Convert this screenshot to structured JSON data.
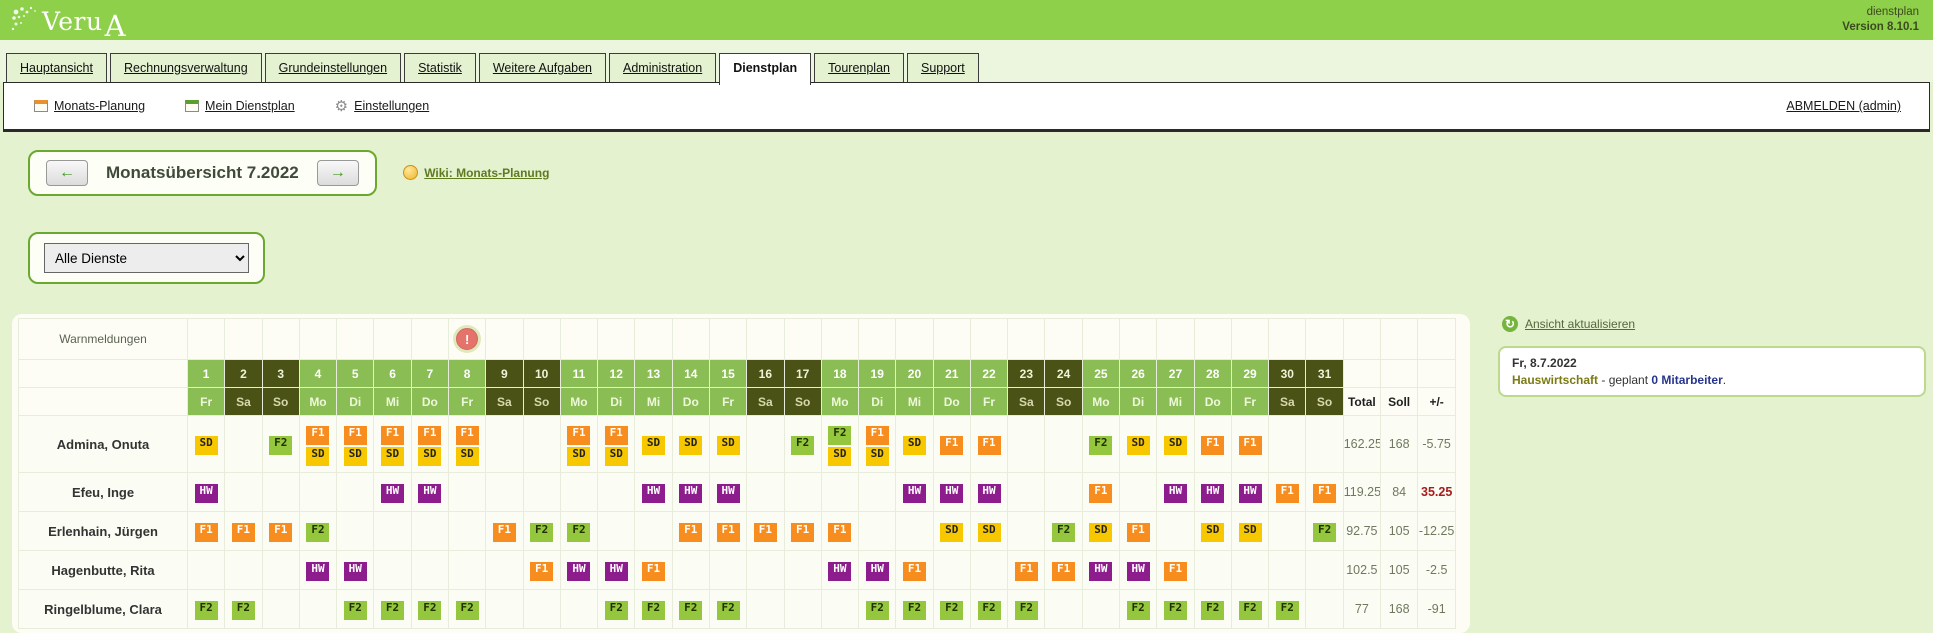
{
  "header": {
    "logo_word": "Veru",
    "logo_cap": "A",
    "app_name": "dienstplan",
    "version": "Version 8.10.1"
  },
  "tabs": [
    {
      "id": "hauptansicht",
      "label": "Hauptansicht",
      "active": false
    },
    {
      "id": "rechnungsverwaltung",
      "label": "Rechnungsverwaltung",
      "active": false
    },
    {
      "id": "grundeinstellungen",
      "label": "Grundeinstellungen",
      "active": false
    },
    {
      "id": "statistik",
      "label": "Statistik",
      "active": false
    },
    {
      "id": "weitere-aufgaben",
      "label": "Weitere Aufgaben",
      "active": false
    },
    {
      "id": "administration",
      "label": "Administration",
      "active": false
    },
    {
      "id": "dienstplan",
      "label": "Dienstplan",
      "active": true
    },
    {
      "id": "tourenplan",
      "label": "Tourenplan",
      "active": false
    },
    {
      "id": "support",
      "label": "Support",
      "active": false
    }
  ],
  "toolbar": {
    "items": [
      {
        "id": "monats-planung",
        "icon": "calendar-orange-icon",
        "label": "Monats-Planung"
      },
      {
        "id": "mein-dienstplan",
        "icon": "calendar-green-icon",
        "label": "Mein Dienstplan"
      },
      {
        "id": "einstellungen",
        "icon": "gear-icon",
        "label": "Einstellungen"
      }
    ],
    "logout_label": "ABMELDEN (admin)"
  },
  "month_nav": {
    "title": "Monatsübersicht 7.2022",
    "wiki_label": "Wiki: Monats-Planung"
  },
  "filter": {
    "selected": "Alle Dienste"
  },
  "right_panel": {
    "refresh_label": "Ansicht aktualisieren",
    "info_date": "Fr, 8.7.2022",
    "info_dept": "Hauswirtschaft",
    "info_middle": " - geplant ",
    "info_count": "0 Mitarbeiter",
    "info_end": "."
  },
  "roster": {
    "warn_label": "Warnmeldungen",
    "warning_day": 8,
    "totals_headers": [
      "Total",
      "Soll",
      "+/-"
    ],
    "days": [
      {
        "n": "1",
        "w": "Fr",
        "we": false
      },
      {
        "n": "2",
        "w": "Sa",
        "we": true
      },
      {
        "n": "3",
        "w": "So",
        "we": true
      },
      {
        "n": "4",
        "w": "Mo",
        "we": false
      },
      {
        "n": "5",
        "w": "Di",
        "we": false
      },
      {
        "n": "6",
        "w": "Mi",
        "we": false
      },
      {
        "n": "7",
        "w": "Do",
        "we": false
      },
      {
        "n": "8",
        "w": "Fr",
        "we": false
      },
      {
        "n": "9",
        "w": "Sa",
        "we": true
      },
      {
        "n": "10",
        "w": "So",
        "we": true
      },
      {
        "n": "11",
        "w": "Mo",
        "we": false
      },
      {
        "n": "12",
        "w": "Di",
        "we": false
      },
      {
        "n": "13",
        "w": "Mi",
        "we": false
      },
      {
        "n": "14",
        "w": "Do",
        "we": false
      },
      {
        "n": "15",
        "w": "Fr",
        "we": false
      },
      {
        "n": "16",
        "w": "Sa",
        "we": true
      },
      {
        "n": "17",
        "w": "So",
        "we": true
      },
      {
        "n": "18",
        "w": "Mo",
        "we": false
      },
      {
        "n": "19",
        "w": "Di",
        "we": false
      },
      {
        "n": "20",
        "w": "Mi",
        "we": false
      },
      {
        "n": "21",
        "w": "Do",
        "we": false
      },
      {
        "n": "22",
        "w": "Fr",
        "we": false
      },
      {
        "n": "23",
        "w": "Sa",
        "we": true
      },
      {
        "n": "24",
        "w": "So",
        "we": true
      },
      {
        "n": "25",
        "w": "Mo",
        "we": false
      },
      {
        "n": "26",
        "w": "Di",
        "we": false
      },
      {
        "n": "27",
        "w": "Mi",
        "we": false
      },
      {
        "n": "28",
        "w": "Do",
        "we": false
      },
      {
        "n": "29",
        "w": "Fr",
        "we": false
      },
      {
        "n": "30",
        "w": "Sa",
        "we": true
      },
      {
        "n": "31",
        "w": "So",
        "we": true
      }
    ],
    "shift_colors": {
      "SD": {
        "bg": "#f7c800",
        "fg": "#222222"
      },
      "F1": {
        "bg": "#f78d1f",
        "fg": "#ffffff"
      },
      "F2": {
        "bg": "#94c73e",
        "fg": "#203000"
      },
      "HW": {
        "bg": "#8d1c8d",
        "fg": "#ffffff"
      }
    },
    "cell_colors": {
      "gray": "#e2e2e2",
      "pink": "#e0898d"
    },
    "employees": [
      {
        "name": "Admina, Onuta",
        "tall": true,
        "cells": [
          "SD",
          "g",
          "F2",
          "F1+SD",
          "F1+SD",
          "F1+SD",
          "F1+SD",
          "F1+SD",
          "g",
          "g",
          "F1+SD",
          "F1+SD",
          "SD",
          "SD",
          "SD",
          "g",
          "F2",
          "F2+SD",
          "F1+SD",
          "SD",
          "F1",
          "F1",
          "g",
          "g",
          "F2",
          "SD",
          "SD",
          "F1",
          "F1",
          "g",
          "g"
        ],
        "total": "162.25",
        "soll": "168",
        "diff": "-5.75",
        "diff_highlight": false
      },
      {
        "name": "Efeu, Inge",
        "tall": false,
        "cells": [
          "HW",
          "",
          "g",
          "p",
          "p",
          "HW",
          "HW",
          "",
          "",
          "g",
          "p",
          "p",
          "HW",
          "HW",
          "HW",
          "",
          "g",
          "p",
          "p",
          "HW",
          "HW",
          "HW",
          "",
          "g",
          "F1@p",
          "p",
          "HW",
          "HW",
          "HW",
          "F1",
          "F1@g"
        ],
        "total": "119.25",
        "soll": "84",
        "diff": "35.25",
        "diff_highlight": true
      },
      {
        "name": "Erlenhain, Jürgen",
        "tall": false,
        "cells": [
          "F1",
          "F1",
          "F1",
          "F2",
          "p",
          "p",
          "",
          "",
          "F1",
          "F2",
          "F2",
          "p",
          "p",
          "F1",
          "F1",
          "F1",
          "F1",
          "F1",
          "p",
          "p",
          "SD",
          "SD",
          "",
          "F2",
          "SD",
          "F1@p",
          "p",
          "SD",
          "SD",
          "",
          "F2"
        ],
        "total": "92.75",
        "soll": "105",
        "diff": "-12.25",
        "diff_highlight": false
      },
      {
        "name": "Hagenbutte, Rita",
        "tall": false,
        "cells": [
          "p",
          "",
          "",
          "HW",
          "HW",
          "",
          "p",
          "p",
          "",
          "F1",
          "HW",
          "HW",
          "F1",
          "p",
          "p",
          "",
          "",
          "HW",
          "HW",
          "F1",
          "p",
          "p",
          "F1",
          "F1",
          "HW",
          "HW",
          "F1",
          "p",
          "p",
          "",
          ""
        ],
        "total": "102.5",
        "soll": "105",
        "diff": "-2.5",
        "diff_highlight": false
      },
      {
        "name": "Ringelblume, Clara",
        "tall": false,
        "cells": [
          "F2",
          "F2",
          "g",
          "p",
          "F2",
          "F2",
          "F2",
          "F2",
          "",
          "g",
          "p",
          "F2",
          "F2",
          "F2",
          "F2",
          "",
          "g",
          "p",
          "F2",
          "F2",
          "F2",
          "F2",
          "F2",
          "g",
          "p",
          "F2",
          "F2",
          "F2",
          "F2",
          "F2",
          "g"
        ],
        "total": "77",
        "soll": "168",
        "diff": "-91",
        "diff_highlight": false
      }
    ]
  }
}
